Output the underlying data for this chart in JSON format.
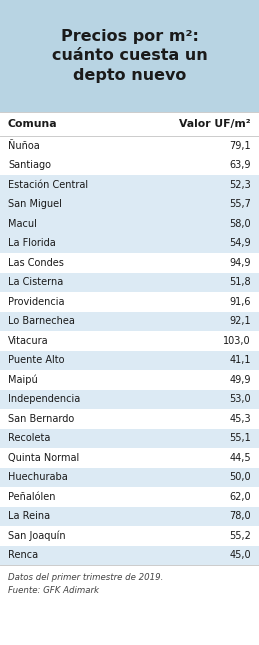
{
  "title": "Precios por m²:\ncuánto cuesta un\ndepto nuevo",
  "title_bg_color": "#b8d4e3",
  "header_comuna": "Comuna",
  "header_valor": "Valor UF/m²",
  "communes": [
    "Ñuñoa",
    "Santiago",
    "Estación Central",
    "San Miguel",
    "Macul",
    "La Florida",
    "Las Condes",
    "La Cisterna",
    "Providencia",
    "Lo Barnechea",
    "Vitacura",
    "Puente Alto",
    "Maipú",
    "Independencia",
    "San Bernardo",
    "Recoleta",
    "Quinta Normal",
    "Huechuraba",
    "Peñalólen",
    "La Reina",
    "San Joaquín",
    "Renca"
  ],
  "values": [
    "79,1",
    "63,9",
    "52,3",
    "55,7",
    "58,0",
    "54,9",
    "94,9",
    "51,8",
    "91,6",
    "92,1",
    "103,0",
    "41,1",
    "49,9",
    "53,0",
    "45,3",
    "55,1",
    "44,5",
    "50,0",
    "62,0",
    "78,0",
    "55,2",
    "45,0"
  ],
  "highlighted_rows": [
    2,
    3,
    4,
    5,
    7,
    9,
    11,
    13,
    15,
    17,
    19,
    21
  ],
  "row_highlight_color": "#dceaf4",
  "row_normal_color": "#ffffff",
  "footer_line1": "Datos del primer trimestre de 2019.",
  "footer_line2": "Fuente: GFK Adimark",
  "bg_color": "#ffffff",
  "text_color": "#1a1a1a"
}
